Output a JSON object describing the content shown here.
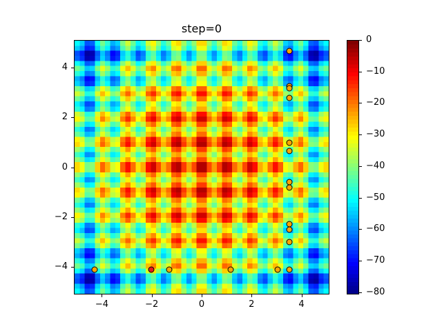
{
  "figure": {
    "title": "step=0"
  },
  "chart_data": {
    "type": "heatmap",
    "title": "step=0",
    "xlabel": "",
    "ylabel": "",
    "function": "negative_rastrigin",
    "formula": "f(x,y) = -(20 + x^2 - 10cos(2*pi*x) + y^2 - 10cos(2*pi*y))",
    "grid": {
      "xmin": -5.12,
      "xmax": 5.12,
      "ymin": -5.12,
      "ymax": 5.12,
      "nx": 50,
      "ny": 50
    },
    "xlim": [
      -5.12,
      5.12
    ],
    "ylim": [
      -5.12,
      5.12
    ],
    "xticks": [
      -4,
      -2,
      0,
      2,
      4
    ],
    "yticks": [
      -4,
      -2,
      0,
      2,
      4
    ],
    "xtick_labels": [
      "−4",
      "−2",
      "0",
      "2",
      "4"
    ],
    "ytick_labels": [
      "−4",
      "−2",
      "0",
      "2",
      "4"
    ],
    "colormap": "jet",
    "colorbar": {
      "vmin": -80.7,
      "vmax": 0,
      "ticks": [
        0,
        -10,
        -20,
        -30,
        -40,
        -50,
        -60,
        -70,
        -80
      ],
      "tick_labels": [
        "0",
        "−10",
        "−20",
        "−30",
        "−40",
        "−50",
        "−60",
        "−70",
        "−80"
      ]
    },
    "scatter_points": [
      {
        "x": 3.49,
        "y": 4.71,
        "color": "#ffa500"
      },
      {
        "x": 3.49,
        "y": 3.3,
        "color": "#ffa500"
      },
      {
        "x": 3.49,
        "y": 3.21,
        "color": "#ffa500"
      },
      {
        "x": 3.49,
        "y": 2.83,
        "color": "#ffa500"
      },
      {
        "x": 3.49,
        "y": 1.0,
        "color": "#ffa500"
      },
      {
        "x": 3.49,
        "y": 0.69,
        "color": "#ffa500"
      },
      {
        "x": 3.49,
        "y": -0.58,
        "color": "#ffa500"
      },
      {
        "x": 3.49,
        "y": -0.8,
        "color": "#ffa500"
      },
      {
        "x": 3.49,
        "y": -2.27,
        "color": "#ffa500"
      },
      {
        "x": 3.49,
        "y": -2.49,
        "color": "#ffa500"
      },
      {
        "x": 3.49,
        "y": -2.99,
        "color": "#ffa500"
      },
      {
        "x": 3.49,
        "y": -4.1,
        "color": "#ffa500"
      },
      {
        "x": -4.32,
        "y": -4.1,
        "color": "#ffa500"
      },
      {
        "x": -2.05,
        "y": -4.1,
        "color": "#e31a1c"
      },
      {
        "x": -1.33,
        "y": -4.1,
        "color": "#ffa500"
      },
      {
        "x": 1.14,
        "y": -4.1,
        "color": "#ffa500"
      },
      {
        "x": 3.02,
        "y": -4.1,
        "color": "#ffa500"
      }
    ]
  }
}
